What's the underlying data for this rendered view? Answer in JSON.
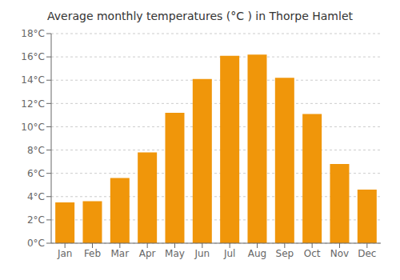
{
  "chart_data": {
    "type": "bar",
    "title": "Average monthly temperatures (°C ) in Thorpe Hamlet",
    "categories": [
      "Jan",
      "Feb",
      "Mar",
      "Apr",
      "May",
      "Jun",
      "Jul",
      "Aug",
      "Sep",
      "Oct",
      "Nov",
      "Dec"
    ],
    "values": [
      3.5,
      3.6,
      5.6,
      7.8,
      11.2,
      14.1,
      16.1,
      16.2,
      14.2,
      11.1,
      6.8,
      4.6
    ],
    "color": "#F0960A",
    "ylim": [
      0,
      18
    ],
    "yticks": [
      {
        "value": 0,
        "label": "0°C"
      },
      {
        "value": 2,
        "label": "2°C"
      },
      {
        "value": 4,
        "label": "4°C"
      },
      {
        "value": 6,
        "label": "6°C"
      },
      {
        "value": 8,
        "label": "8°C"
      },
      {
        "value": 10,
        "label": "10°C"
      },
      {
        "value": 12,
        "label": "12°C"
      },
      {
        "value": 14,
        "label": "14°C"
      },
      {
        "value": 16,
        "label": "16°C"
      },
      {
        "value": 18,
        "label": "18°C"
      }
    ],
    "grid": true
  }
}
